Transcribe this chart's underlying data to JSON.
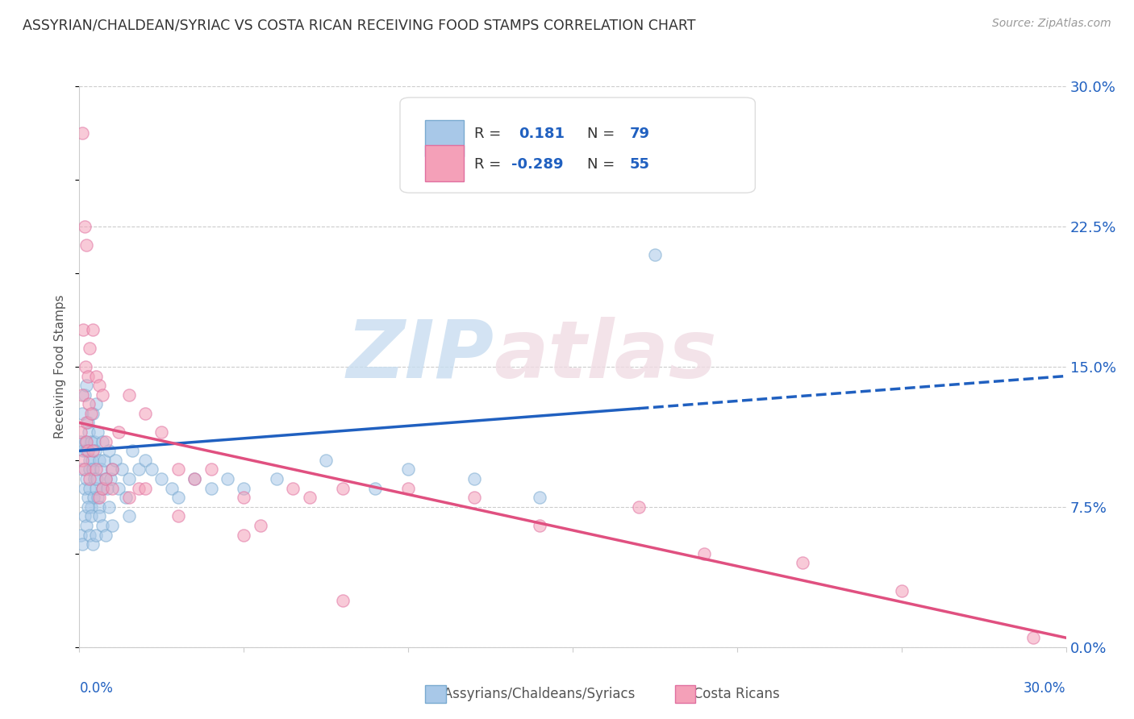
{
  "title": "ASSYRIAN/CHALDEAN/SYRIAC VS COSTA RICAN RECEIVING FOOD STAMPS CORRELATION CHART",
  "source": "Source: ZipAtlas.com",
  "ylabel": "Receiving Food Stamps",
  "ylabel_right_ticks": [
    "0.0%",
    "7.5%",
    "15.0%",
    "22.5%",
    "30.0%"
  ],
  "ylabel_right_vals": [
    0.0,
    7.5,
    15.0,
    22.5,
    30.0
  ],
  "blue_color": "#a8c8e8",
  "pink_color": "#f4a0b8",
  "blue_edge_color": "#7aaad0",
  "pink_edge_color": "#e070a0",
  "blue_line_color": "#2060c0",
  "pink_line_color": "#e05080",
  "blue_scatter_x": [
    0.05,
    0.08,
    0.1,
    0.12,
    0.15,
    0.15,
    0.18,
    0.2,
    0.2,
    0.22,
    0.25,
    0.25,
    0.28,
    0.3,
    0.3,
    0.32,
    0.35,
    0.35,
    0.38,
    0.4,
    0.4,
    0.42,
    0.45,
    0.45,
    0.48,
    0.5,
    0.5,
    0.52,
    0.55,
    0.55,
    0.6,
    0.6,
    0.65,
    0.7,
    0.7,
    0.75,
    0.8,
    0.85,
    0.9,
    0.95,
    1.0,
    1.1,
    1.2,
    1.3,
    1.4,
    1.5,
    1.6,
    1.8,
    2.0,
    2.2,
    2.5,
    2.8,
    3.0,
    3.5,
    4.0,
    4.5,
    5.0,
    6.0,
    7.5,
    9.0,
    10.0,
    12.0,
    14.0,
    17.5,
    0.05,
    0.1,
    0.15,
    0.2,
    0.25,
    0.3,
    0.35,
    0.4,
    0.5,
    0.6,
    0.7,
    0.8,
    0.9,
    1.0,
    1.5
  ],
  "blue_scatter_y": [
    11.0,
    9.5,
    12.5,
    10.5,
    13.5,
    8.5,
    11.0,
    9.0,
    14.0,
    10.5,
    12.0,
    8.0,
    11.5,
    10.0,
    8.5,
    9.5,
    11.0,
    7.5,
    10.0,
    9.5,
    12.5,
    8.0,
    11.0,
    9.0,
    10.5,
    8.5,
    13.0,
    9.0,
    11.5,
    8.0,
    10.0,
    7.5,
    9.5,
    11.0,
    8.5,
    10.0,
    9.0,
    8.5,
    10.5,
    9.0,
    9.5,
    10.0,
    8.5,
    9.5,
    8.0,
    9.0,
    10.5,
    9.5,
    10.0,
    9.5,
    9.0,
    8.5,
    8.0,
    9.0,
    8.5,
    9.0,
    8.5,
    9.0,
    10.0,
    8.5,
    9.5,
    9.0,
    8.0,
    21.0,
    6.0,
    5.5,
    7.0,
    6.5,
    7.5,
    6.0,
    7.0,
    5.5,
    6.0,
    7.0,
    6.5,
    6.0,
    7.5,
    6.5,
    7.0
  ],
  "pink_scatter_x": [
    0.05,
    0.08,
    0.1,
    0.12,
    0.15,
    0.18,
    0.2,
    0.22,
    0.25,
    0.28,
    0.3,
    0.35,
    0.4,
    0.5,
    0.6,
    0.7,
    0.8,
    1.0,
    1.2,
    1.5,
    1.8,
    2.0,
    2.5,
    3.0,
    3.5,
    4.0,
    5.0,
    5.5,
    6.5,
    7.0,
    8.0,
    10.0,
    12.0,
    14.0,
    17.0,
    19.0,
    22.0,
    25.0,
    29.0,
    0.1,
    0.15,
    0.2,
    0.25,
    0.3,
    0.4,
    0.5,
    0.6,
    0.7,
    0.8,
    1.0,
    1.5,
    2.0,
    3.0,
    5.0,
    8.0
  ],
  "pink_scatter_y": [
    11.5,
    27.5,
    13.5,
    17.0,
    22.5,
    15.0,
    12.0,
    21.5,
    14.5,
    13.0,
    16.0,
    12.5,
    17.0,
    14.5,
    14.0,
    13.5,
    11.0,
    9.5,
    11.5,
    13.5,
    8.5,
    12.5,
    11.5,
    9.5,
    9.0,
    9.5,
    8.0,
    6.5,
    8.5,
    8.0,
    8.5,
    8.5,
    8.0,
    6.5,
    7.5,
    5.0,
    4.5,
    3.0,
    0.5,
    10.0,
    9.5,
    11.0,
    10.5,
    9.0,
    10.5,
    9.5,
    8.0,
    8.5,
    9.0,
    8.5,
    8.0,
    8.5,
    7.0,
    6.0,
    2.5
  ],
  "blue_line_x0": 0.0,
  "blue_line_x_solid_end": 17.0,
  "blue_line_x1": 30.0,
  "blue_line_y0": 10.5,
  "blue_line_y1": 14.5,
  "pink_line_x0": 0.0,
  "pink_line_x1": 30.0,
  "pink_line_y0": 12.0,
  "pink_line_y1": 0.5,
  "xmin": 0.0,
  "xmax": 30.0,
  "ymin": 0.0,
  "ymax": 30.0,
  "background_color": "#ffffff",
  "grid_color": "#cccccc",
  "watermark_zip_color": "#c8ddf0",
  "watermark_atlas_color": "#f0dce4"
}
